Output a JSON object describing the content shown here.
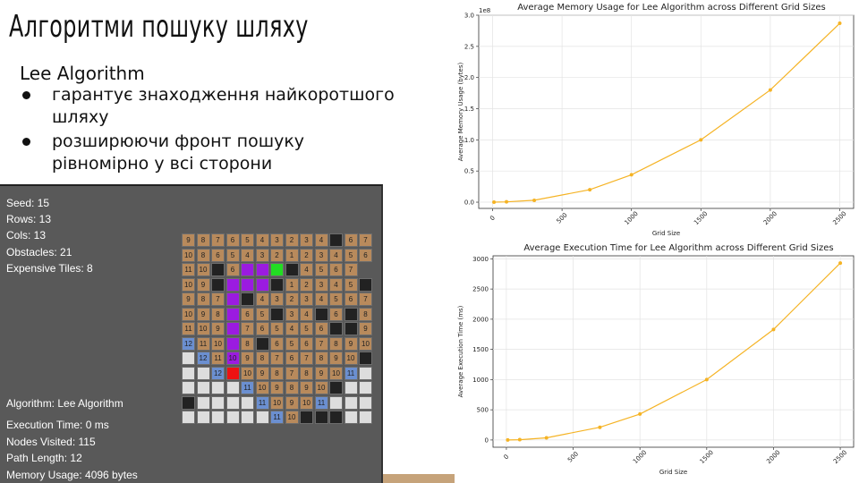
{
  "slide": {
    "title": "Алгоритми пошуку шляху",
    "subtitle": "Lee Algorithm",
    "bullets": [
      "гарантує знаходження найкоротшого шляху",
      "розширюючи фронт пошуку рівномірно у всі сторони"
    ]
  },
  "simulation": {
    "seed": "Seed: 15",
    "rows": "Rows: 13",
    "cols": "Cols: 13",
    "obstacles": "Obstacles: 21",
    "expensive_tiles": "Expensive Tiles: 8",
    "algorithm": "Algorithm: Lee Algorithm",
    "execution_time": "Execution Time: 0 ms",
    "nodes_visited": "Nodes Visited: 115",
    "path_length": "Path Length: 12",
    "memory_usage": "Memory Usage: 4096 bytes",
    "colors": {
      "visited": "#b88a5c",
      "obstacle": "#222222",
      "path": "#9b1be0",
      "start": "#22dd22",
      "end": "#ee1111",
      "expensive": "#6b8fd0",
      "unvisited": "#dddddd"
    },
    "grid": [
      [
        "9",
        "8",
        "7",
        "6",
        "5",
        "4",
        "3",
        "2",
        "3",
        "4",
        "#",
        "6",
        "7"
      ],
      [
        "10",
        "8",
        "6",
        "5",
        "4",
        "3",
        "2",
        "1",
        "2",
        "3",
        "4",
        "5",
        "6"
      ],
      [
        "11",
        "10",
        "#",
        "6",
        "P",
        "P",
        "S",
        "#",
        "4",
        "5",
        "6",
        "7"
      ],
      [
        "10",
        "9",
        "#",
        "P",
        "P",
        "P",
        "#",
        "1",
        "2",
        "3",
        "4",
        "5",
        "#"
      ],
      [
        "9",
        "8",
        "7",
        "P",
        "#",
        "4",
        "3",
        "2",
        "3",
        "4",
        "5",
        "6",
        "7"
      ],
      [
        "10",
        "9",
        "8",
        "P",
        "6",
        "5",
        "#",
        "3",
        "4",
        "#",
        "6",
        "#",
        "8"
      ],
      [
        "11",
        "10",
        "9",
        "P",
        "7",
        "6",
        "5",
        "4",
        "5",
        "6",
        "#",
        "#",
        "9"
      ],
      [
        "e12",
        "11",
        "10",
        "P",
        "8",
        "#",
        "6",
        "5",
        "6",
        "7",
        "8",
        "9",
        "10"
      ],
      [
        "U",
        "e12",
        "11",
        "P10",
        "9",
        "8",
        "7",
        "6",
        "7",
        "8",
        "9",
        "10",
        "#"
      ],
      [
        "U",
        "U",
        "e12",
        "E",
        "10",
        "9",
        "8",
        "7",
        "8",
        "9",
        "10",
        "e11",
        "U"
      ],
      [
        "U",
        "U",
        "U",
        "U",
        "e11",
        "10",
        "9",
        "8",
        "9",
        "10",
        "#",
        "U",
        "U"
      ],
      [
        "#",
        "U",
        "U",
        "U",
        "U",
        "e11",
        "10",
        "9",
        "10",
        "e11",
        "U",
        "U",
        "U"
      ],
      [
        "U",
        "U",
        "U",
        "U",
        "U",
        "U",
        "e11",
        "10",
        "#",
        "#",
        "#",
        "U",
        "U"
      ]
    ]
  },
  "charts": {
    "accent_color": "#f5b324"
  },
  "chart_data": [
    {
      "type": "line",
      "title": "Average Memory Usage for Lee Algorithm across Different Grid Sizes",
      "xlabel": "Grid Size",
      "ylabel": "Average Memory Usage (bytes)",
      "y_multiplier": "1e8",
      "x": [
        10,
        100,
        300,
        700,
        1000,
        1500,
        2000,
        2500
      ],
      "values": [
        0.0,
        0.005,
        0.03,
        0.2,
        0.44,
        1.0,
        1.8,
        2.87
      ],
      "xlim": [
        -100,
        2600
      ],
      "ylim": [
        -0.1,
        3.0
      ],
      "xticks": [
        "0",
        "500",
        "1000",
        "1500",
        "2000",
        "2500"
      ],
      "yticks": [
        "0.0",
        "0.5",
        "1.0",
        "1.5",
        "2.0",
        "2.5",
        "3.0"
      ],
      "grid": true
    },
    {
      "type": "line",
      "title": "Average Execution Time for Lee Algorithm across Different Grid Sizes",
      "xlabel": "Grid Size",
      "ylabel": "Average Execution Time (ms)",
      "x": [
        10,
        100,
        300,
        700,
        1000,
        1500,
        2000,
        2500
      ],
      "values": [
        0,
        5,
        35,
        210,
        430,
        1000,
        1830,
        2930
      ],
      "xlim": [
        -100,
        2600
      ],
      "ylim": [
        -120,
        3050
      ],
      "xticks": [
        "0",
        "500",
        "1000",
        "1500",
        "2000",
        "2500"
      ],
      "yticks": [
        "0",
        "500",
        "1000",
        "1500",
        "2000",
        "2500",
        "3000"
      ],
      "grid": true
    }
  ]
}
